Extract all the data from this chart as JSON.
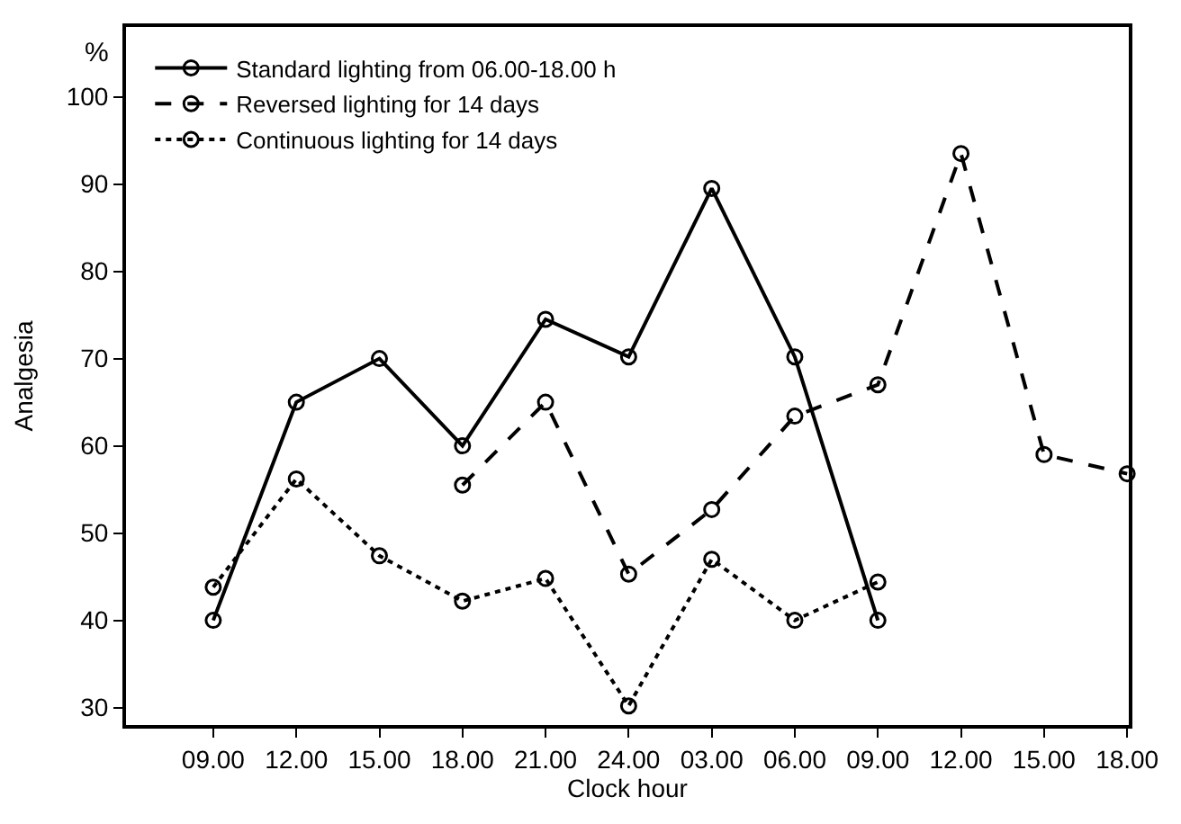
{
  "chart_data": {
    "type": "line",
    "xlabel": "Clock hour",
    "ylabel": "Analgesia",
    "annotations": [
      "%"
    ],
    "categories": [
      "09.00",
      "12.00",
      "15.00",
      "18.00",
      "21.00",
      "24.00",
      "03.00",
      "06.00",
      "09.00",
      "12.00",
      "15.00",
      "18.00"
    ],
    "ylim": [
      28,
      108
    ],
    "yticks": [
      30,
      40,
      50,
      60,
      70,
      80,
      90,
      100
    ],
    "legend": "top left",
    "marker": "circle",
    "series": [
      {
        "name": "Standard lighting from 06.00-18.00 h",
        "color": "#000000",
        "line_style": "solid",
        "values": [
          40,
          65,
          70,
          60,
          74.5,
          70.2,
          89.5,
          70.2,
          40,
          null,
          null,
          null
        ]
      },
      {
        "name": "Reversed lighting for 14 days",
        "color": "#000000",
        "line_style": "dashed",
        "values": [
          null,
          null,
          null,
          55.5,
          65,
          45.3,
          52.7,
          63.4,
          67,
          93.5,
          59,
          56.8
        ]
      },
      {
        "name": "Continuous lighting for 14 days",
        "color": "#000000",
        "line_style": "dotted",
        "values": [
          43.8,
          56.2,
          47.4,
          42.2,
          44.8,
          30.2,
          47,
          40,
          44.4,
          null,
          null,
          null
        ]
      }
    ]
  }
}
